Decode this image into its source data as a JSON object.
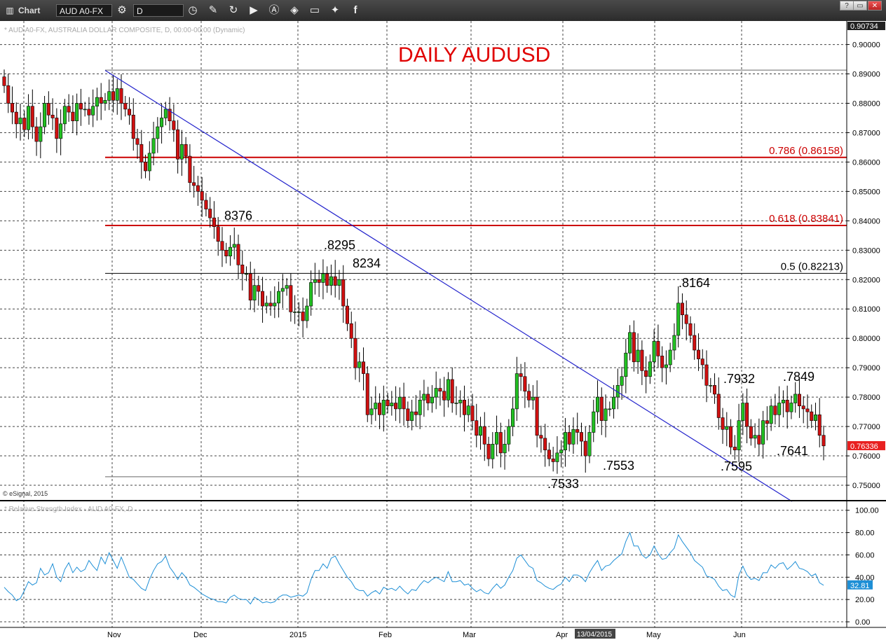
{
  "toolbar": {
    "app_label": "Chart",
    "symbol": "AUD A0-FX",
    "interval": "D"
  },
  "colors": {
    "background": "#ffffff",
    "up_candle": "#22c022",
    "down_candle": "#d01010",
    "trendline": "#2222cc",
    "fib_red": "#cc0000",
    "rsi_line": "#1e8fd6",
    "price_box": "#e82020",
    "rsi_box": "#1e8fd6"
  },
  "chart_data": [
    {
      "type": "candlestick",
      "title": "DAILY AUDUSD",
      "header": "* AUD A0-FX, AUSTRALIA DOLLAR COMPOSITE, D, 00:00-00:00 (Dynamic)",
      "copyright": "© eSignal, 2015",
      "ylim": [
        0.745,
        0.908
      ],
      "y_ticks": [
        "0.90000",
        "0.89000",
        "0.88000",
        "0.87000",
        "0.86000",
        "0.85000",
        "0.84000",
        "0.83000",
        "0.82000",
        "0.81000",
        "0.80000",
        "0.79000",
        "0.78000",
        "0.77000",
        "0.76000",
        "0.75000"
      ],
      "top_value_label": "0.90734",
      "last_price_label": "0.76336",
      "x_labels": [
        "Nov",
        "Dec",
        "2015",
        "Feb",
        "Mar",
        "Apr",
        "May",
        "Jun"
      ],
      "cursor_date_label": "13/04/2015",
      "grid": true,
      "fib_levels": [
        {
          "label": "0.786 (0.86158)",
          "value": 0.86158,
          "style": "red"
        },
        {
          "label": "0.618 (0.83841)",
          "value": 0.83841,
          "style": "red"
        },
        {
          "label": "0.5 (0.82213)",
          "value": 0.82213,
          "style": "black"
        }
      ],
      "extra_levels": [
        0.8913,
        0.7529
      ],
      "trendline": {
        "start": [
          0.8912
        ],
        "end": [
          0.7445
        ]
      },
      "annotations": [
        {
          "label": "8376",
          "value": 0.8376
        },
        {
          "label": ".8295",
          "value": 0.8295
        },
        {
          "label": "8234",
          "value": 0.8234
        },
        {
          "label": ".8164",
          "value": 0.8164
        },
        {
          "label": ".7932",
          "value": 0.7932
        },
        {
          "label": ".7849",
          "value": 0.7849
        },
        {
          "label": ".7641",
          "value": 0.7641
        },
        {
          "label": ".7595",
          "value": 0.7595
        },
        {
          "label": ".7553",
          "value": 0.7553
        },
        {
          "label": ".7533",
          "value": 0.7533
        }
      ],
      "closes": [
        0.886,
        0.88,
        0.877,
        0.873,
        0.875,
        0.871,
        0.879,
        0.872,
        0.867,
        0.872,
        0.88,
        0.876,
        0.875,
        0.868,
        0.873,
        0.879,
        0.877,
        0.874,
        0.88,
        0.878,
        0.878,
        0.876,
        0.879,
        0.882,
        0.88,
        0.881,
        0.884,
        0.881,
        0.885,
        0.88,
        0.878,
        0.876,
        0.868,
        0.866,
        0.86,
        0.857,
        0.863,
        0.868,
        0.872,
        0.875,
        0.878,
        0.874,
        0.871,
        0.861,
        0.866,
        0.862,
        0.853,
        0.852,
        0.85,
        0.847,
        0.844,
        0.841,
        0.838,
        0.833,
        0.83,
        0.828,
        0.831,
        0.832,
        0.825,
        0.822,
        0.822,
        0.813,
        0.818,
        0.816,
        0.811,
        0.812,
        0.811,
        0.812,
        0.816,
        0.817,
        0.818,
        0.809,
        0.809,
        0.809,
        0.806,
        0.811,
        0.819,
        0.82,
        0.819,
        0.822,
        0.818,
        0.821,
        0.818,
        0.82,
        0.811,
        0.805,
        0.8,
        0.79,
        0.792,
        0.788,
        0.774,
        0.776,
        0.778,
        0.774,
        0.779,
        0.777,
        0.778,
        0.776,
        0.78,
        0.776,
        0.772,
        0.775,
        0.774,
        0.779,
        0.781,
        0.778,
        0.78,
        0.783,
        0.782,
        0.779,
        0.786,
        0.778,
        0.778,
        0.779,
        0.774,
        0.777,
        0.772,
        0.767,
        0.77,
        0.764,
        0.759,
        0.764,
        0.768,
        0.761,
        0.764,
        0.77,
        0.776,
        0.788,
        0.787,
        0.782,
        0.779,
        0.78,
        0.767,
        0.766,
        0.762,
        0.759,
        0.758,
        0.761,
        0.762,
        0.768,
        0.764,
        0.769,
        0.768,
        0.765,
        0.76,
        0.768,
        0.775,
        0.78,
        0.772,
        0.776,
        0.776,
        0.78,
        0.784,
        0.787,
        0.795,
        0.802,
        0.792,
        0.796,
        0.789,
        0.787,
        0.792,
        0.799,
        0.794,
        0.79,
        0.791,
        0.796,
        0.801,
        0.812,
        0.808,
        0.805,
        0.801,
        0.796,
        0.793,
        0.791,
        0.784,
        0.784,
        0.781,
        0.773,
        0.769,
        0.77,
        0.763,
        0.762,
        0.772,
        0.778,
        0.77,
        0.766,
        0.767,
        0.764,
        0.772,
        0.771,
        0.777,
        0.774,
        0.778,
        0.779,
        0.775,
        0.778,
        0.781,
        0.777,
        0.776,
        0.775,
        0.772,
        0.774,
        0.767,
        0.7634
      ]
    },
    {
      "type": "line",
      "title": "* Relative Strength Index - AUD A0-FX, D",
      "ylim": [
        -5,
        108
      ],
      "y_ticks": [
        "100.00",
        "80.00",
        "60.00",
        "40.00",
        "20.00",
        "0.00"
      ],
      "last_value_label": "32.81",
      "values": [
        31,
        27,
        24,
        19,
        21,
        28,
        36,
        33,
        35,
        48,
        42,
        44,
        52,
        40,
        36,
        47,
        53,
        44,
        49,
        45,
        47,
        55,
        50,
        46,
        58,
        52,
        62,
        55,
        48,
        58,
        49,
        40,
        38,
        34,
        30,
        28,
        38,
        46,
        52,
        54,
        59,
        49,
        44,
        38,
        44,
        40,
        33,
        31,
        28,
        25,
        23,
        21,
        20,
        18,
        18,
        17,
        22,
        24,
        21,
        20,
        20,
        16,
        22,
        20,
        17,
        18,
        17,
        18,
        22,
        24,
        24,
        22,
        23,
        24,
        23,
        26,
        38,
        46,
        46,
        52,
        48,
        57,
        59,
        52,
        46,
        40,
        36,
        30,
        28,
        28,
        23,
        26,
        28,
        25,
        31,
        29,
        30,
        28,
        32,
        28,
        25,
        29,
        28,
        33,
        37,
        35,
        38,
        40,
        38,
        36,
        45,
        36,
        36,
        37,
        33,
        34,
        30,
        27,
        29,
        26,
        25,
        30,
        34,
        30,
        33,
        40,
        46,
        57,
        60,
        55,
        50,
        48,
        37,
        35,
        32,
        30,
        29,
        32,
        34,
        40,
        36,
        42,
        42,
        40,
        36,
        44,
        50,
        55,
        46,
        50,
        51,
        55,
        58,
        61,
        72,
        80,
        68,
        68,
        60,
        57,
        60,
        68,
        61,
        56,
        57,
        62,
        66,
        78,
        72,
        67,
        62,
        55,
        52,
        49,
        41,
        40,
        38,
        32,
        28,
        29,
        24,
        22,
        42,
        50,
        42,
        38,
        39,
        37,
        44,
        44,
        51,
        48,
        52,
        53,
        47,
        50,
        54,
        48,
        47,
        45,
        41,
        43,
        35,
        32.81
      ]
    }
  ]
}
